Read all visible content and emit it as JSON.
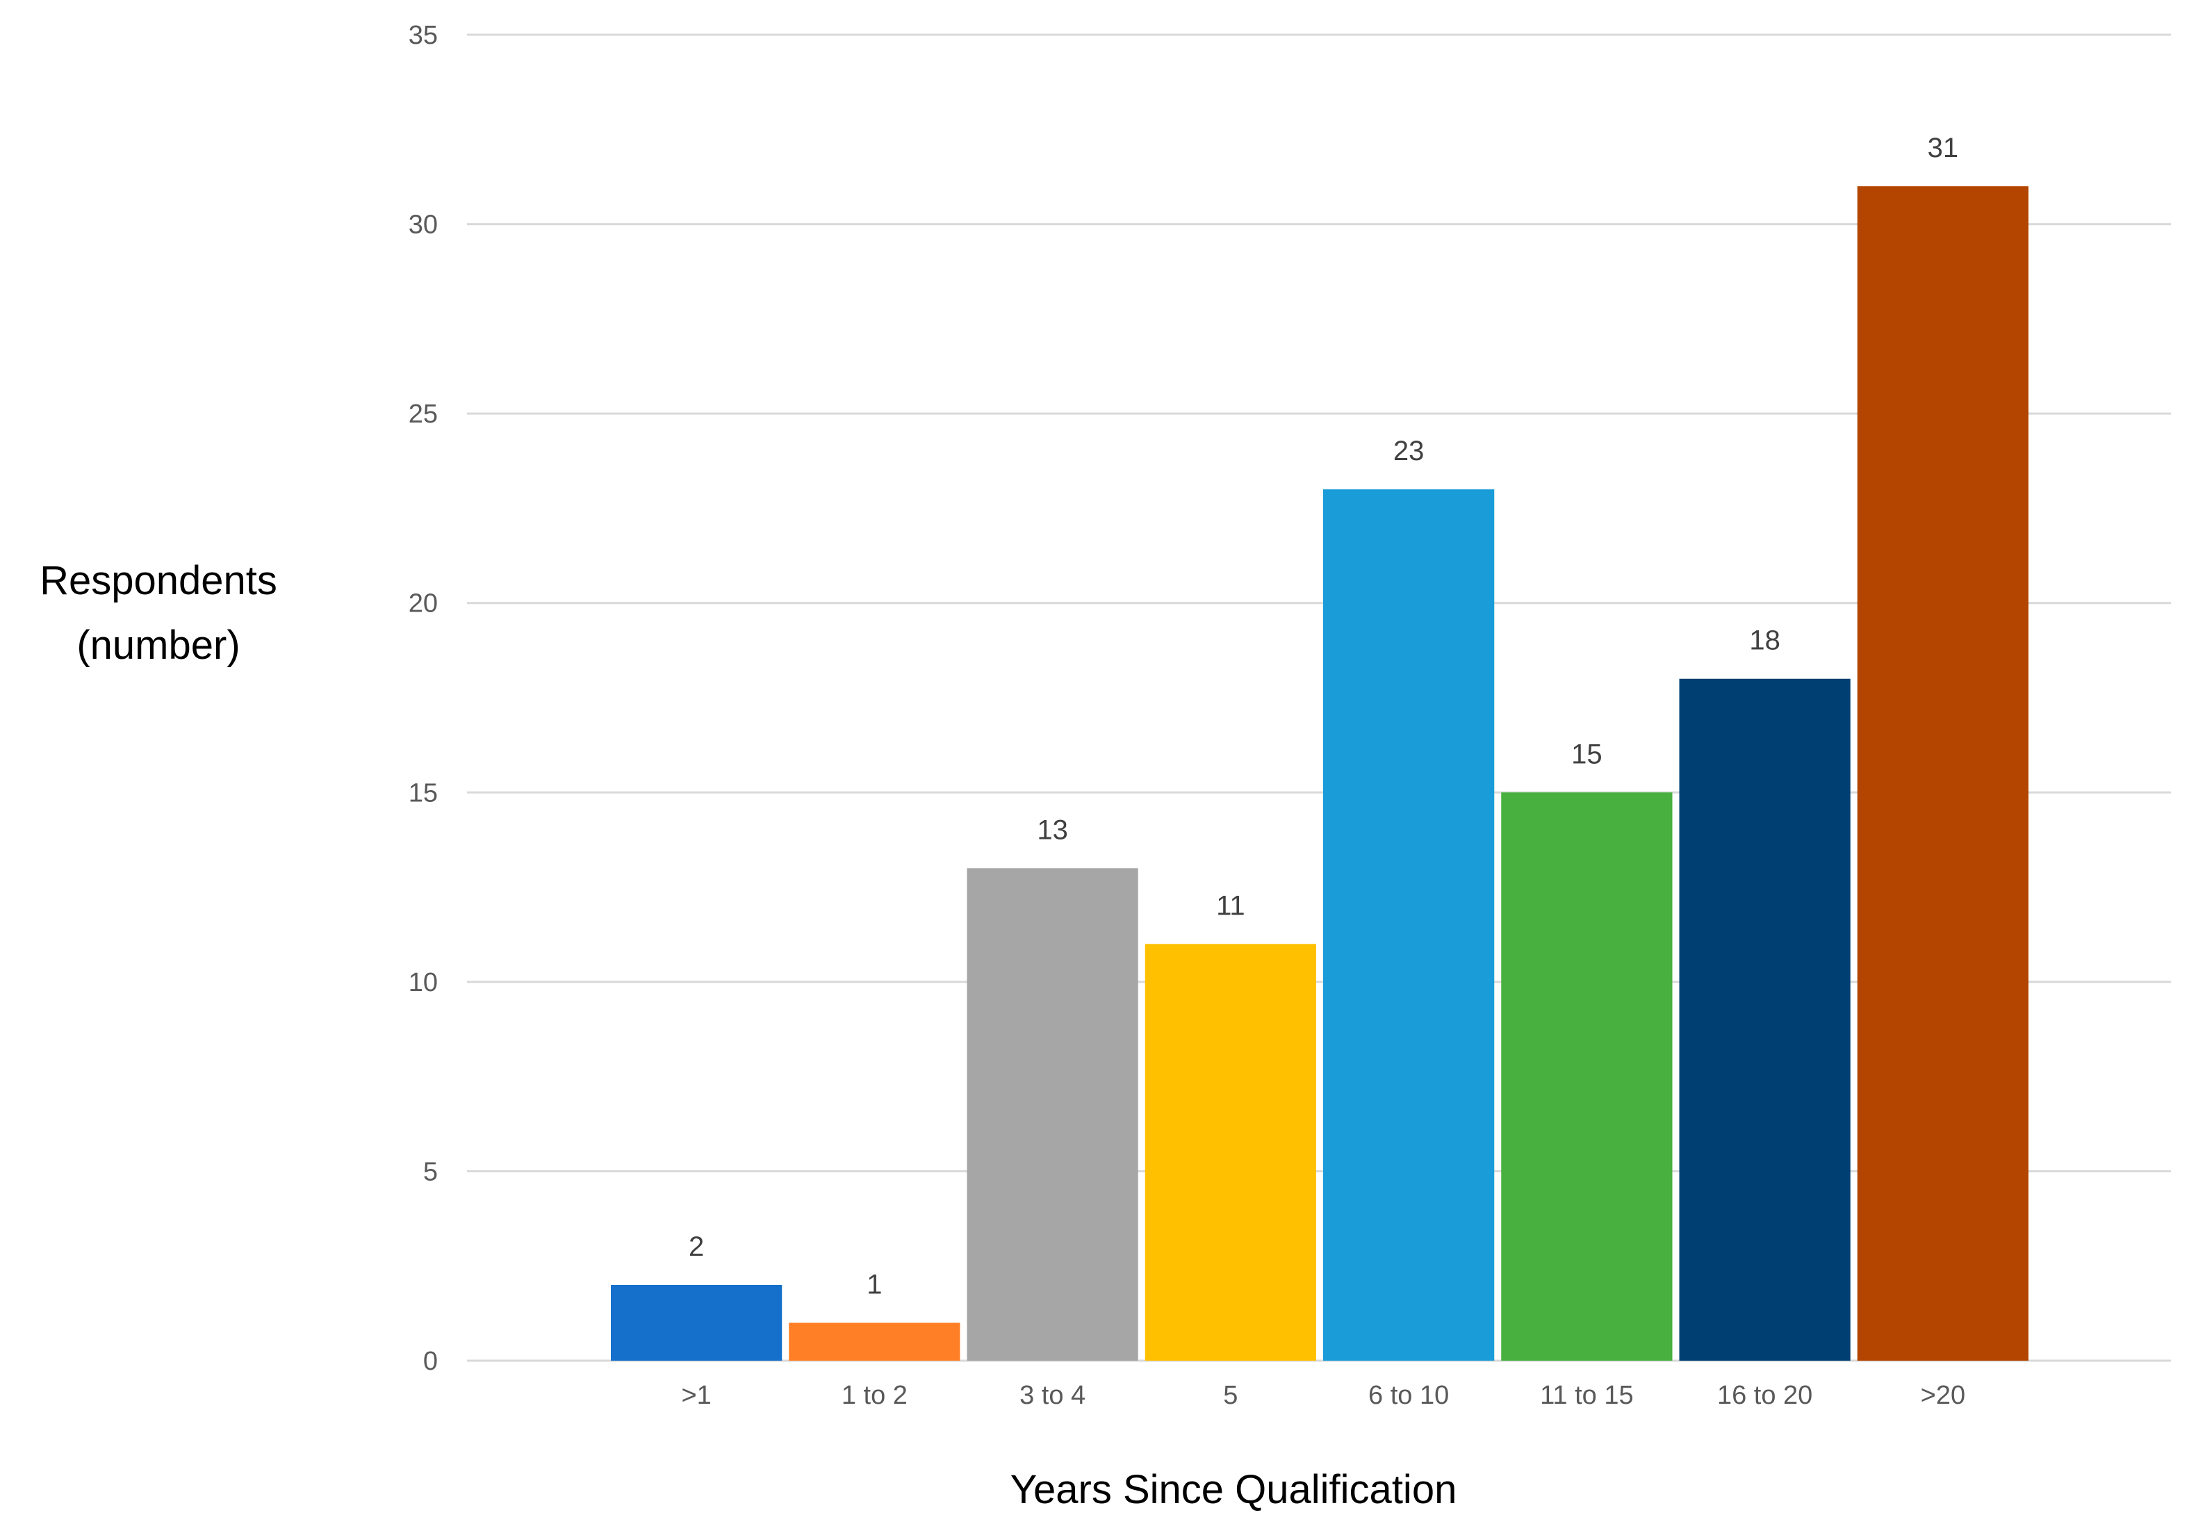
{
  "chart_data": {
    "type": "bar",
    "categories": [
      ">1",
      "1 to 2",
      "3 to 4",
      "5",
      "6 to 10",
      "11 to 15",
      "16 to 20",
      ">20"
    ],
    "values": [
      2,
      1,
      13,
      11,
      23,
      15,
      18,
      31
    ],
    "data_labels": [
      "2",
      "1",
      "13",
      "11",
      "23",
      "15",
      "18",
      "31"
    ],
    "bar_colors": [
      "#1570CB",
      "#FF7F27",
      "#A6A6A6",
      "#FFC000",
      "#1A9CD8",
      "#47B03E",
      "#003F72",
      "#B34500"
    ],
    "title": "",
    "xlabel": "Years Since Qualification",
    "ylabel_lines": [
      "Respondents",
      "(number)"
    ],
    "ylim": [
      0,
      35
    ],
    "y_ticks": [
      0,
      5,
      10,
      15,
      20,
      25,
      30,
      35
    ],
    "y_tick_labels": [
      "0",
      "5",
      "10",
      "15",
      "20",
      "25",
      "30",
      "35"
    ],
    "grid": true,
    "legend": "none",
    "gridline_color": "#D9D9D9"
  }
}
